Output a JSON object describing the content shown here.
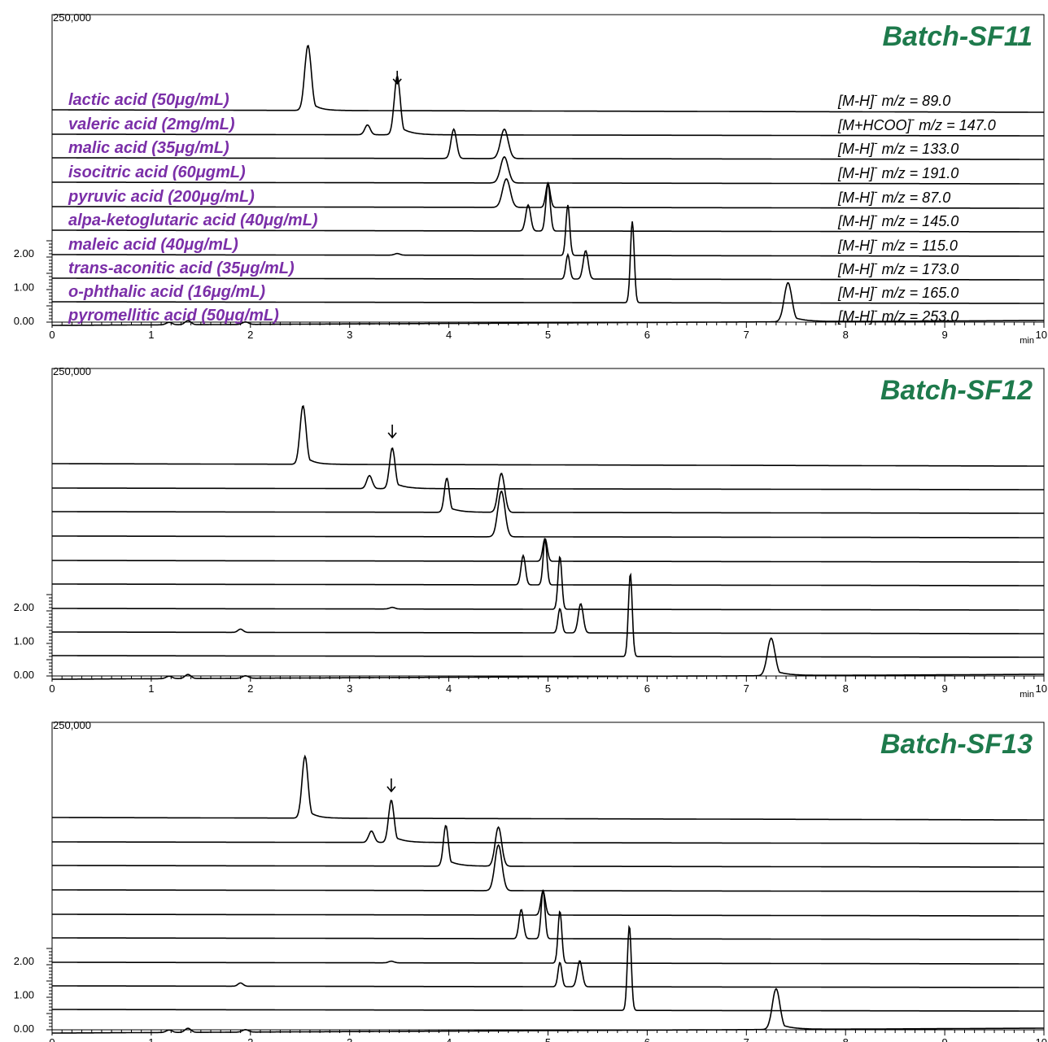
{
  "chart_data": {
    "type": "line",
    "x_unit": "min",
    "xlim": [
      0,
      10
    ],
    "x_ticks": [
      "0",
      "1",
      "2",
      "3",
      "4",
      "5",
      "6",
      "7",
      "8",
      "9",
      "10"
    ],
    "y_top_label": "250,000",
    "y_ticks": [
      "0.00",
      "1.00",
      "2.00"
    ],
    "compounds": [
      "lactic acid (50μg/mL)",
      "valeric acid (2mg/mL)",
      "malic acid (35μg/mL)",
      "isocitric acid (60μgmL)",
      "pyruvic acid (200μg/mL)",
      "alpa-ketoglutaric acid (40μg/mL)",
      "maleic acid (40μg/mL)",
      "trans-aconitic acid (35μg/mL)",
      "o-phthalic acid (16μg/mL)",
      "pyromellitic acid (50μg/mL)"
    ],
    "ions": [
      {
        "ion": "[M-H]",
        "mz": "m/z = 89.0"
      },
      {
        "ion": "[M+HCOO]",
        "mz": "m/z = 147.0"
      },
      {
        "ion": "[M-H]",
        "mz": "m/z = 133.0"
      },
      {
        "ion": "[M-H]",
        "mz": "m/z = 191.0"
      },
      {
        "ion": "[M-H]",
        "mz": "m/z = 87.0"
      },
      {
        "ion": "[M-H]",
        "mz": "m/z = 145.0"
      },
      {
        "ion": "[M-H]",
        "mz": "m/z = 115.0"
      },
      {
        "ion": "[M-H]",
        "mz": "m/z = 173.0"
      },
      {
        "ion": "[M-H]",
        "mz": "m/z = 165.0"
      },
      {
        "ion": "[M-H]",
        "mz": "m/z = 253.0"
      }
    ],
    "ion_superscript": "-",
    "panels": [
      {
        "title": "Batch-SF11",
        "arrow_x": 3.48,
        "series": [
          {
            "peaks": [
              {
                "x": 2.58,
                "h": 80,
                "w": 0.06,
                "tail": 0.08
              }
            ]
          },
          {
            "peaks": [
              {
                "x": 3.18,
                "h": 12,
                "w": 0.05
              },
              {
                "x": 3.48,
                "h": 72,
                "w": 0.055,
                "tail": 0.1
              }
            ]
          },
          {
            "peaks": [
              {
                "x": 4.05,
                "h": 36,
                "w": 0.05
              },
              {
                "x": 4.56,
                "h": 36,
                "w": 0.07
              }
            ]
          },
          {
            "peaks": [
              {
                "x": 4.03,
                "h": 0,
                "w": 0.05
              },
              {
                "x": 4.56,
                "h": 32,
                "w": 0.07
              }
            ]
          },
          {
            "peaks": [
              {
                "x": 4.58,
                "h": 35,
                "w": 0.07
              },
              {
                "x": 5.0,
                "h": 30,
                "w": 0.04
              }
            ]
          },
          {
            "peaks": [
              {
                "x": 4.8,
                "h": 32,
                "w": 0.045
              },
              {
                "x": 5.0,
                "h": 58,
                "w": 0.04
              }
            ]
          },
          {
            "peaks": [
              {
                "x": 5.2,
                "h": 62,
                "w": 0.035
              },
              {
                "x": 3.48,
                "h": 2,
                "w": 0.05
              }
            ]
          },
          {
            "peaks": [
              {
                "x": 5.2,
                "h": 30,
                "w": 0.035
              },
              {
                "x": 5.38,
                "h": 35,
                "w": 0.045
              }
            ]
          },
          {
            "peaks": [
              {
                "x": 5.85,
                "h": 100,
                "w": 0.035
              }
            ]
          },
          {
            "peaks": [
              {
                "x": 7.42,
                "h": 48,
                "w": 0.07,
                "tail": 0.12
              }
            ]
          }
        ]
      },
      {
        "title": "Batch-SF12",
        "arrow_x": 3.43,
        "series": [
          {
            "peaks": [
              {
                "x": 2.53,
                "h": 72,
                "w": 0.055,
                "tail": 0.08
              }
            ]
          },
          {
            "peaks": [
              {
                "x": 3.2,
                "h": 16,
                "w": 0.05
              },
              {
                "x": 3.43,
                "h": 50,
                "w": 0.05,
                "tail": 0.1
              }
            ]
          },
          {
            "peaks": [
              {
                "x": 3.98,
                "h": 42,
                "w": 0.045,
                "tail": 0.1
              },
              {
                "x": 4.53,
                "h": 48,
                "w": 0.06
              }
            ]
          },
          {
            "peaks": [
              {
                "x": 4.53,
                "h": 56,
                "w": 0.065
              }
            ]
          },
          {
            "peaks": [
              {
                "x": 4.97,
                "h": 28,
                "w": 0.04
              }
            ]
          },
          {
            "peaks": [
              {
                "x": 4.75,
                "h": 36,
                "w": 0.04
              },
              {
                "x": 4.97,
                "h": 56,
                "w": 0.035
              }
            ]
          },
          {
            "peaks": [
              {
                "x": 5.12,
                "h": 65,
                "w": 0.035
              },
              {
                "x": 3.43,
                "h": 2,
                "w": 0.05
              }
            ]
          },
          {
            "peaks": [
              {
                "x": 5.12,
                "h": 30,
                "w": 0.035
              },
              {
                "x": 5.33,
                "h": 36,
                "w": 0.045
              }
            ]
          },
          {
            "peaks": [
              {
                "x": 5.83,
                "h": 102,
                "w": 0.035
              }
            ]
          },
          {
            "peaks": [
              {
                "x": 7.25,
                "h": 46,
                "w": 0.07,
                "tail": 0.12
              }
            ]
          }
        ]
      },
      {
        "title": "Batch-SF13",
        "arrow_x": 3.42,
        "series": [
          {
            "peaks": [
              {
                "x": 2.55,
                "h": 76,
                "w": 0.055,
                "tail": 0.08
              }
            ]
          },
          {
            "peaks": [
              {
                "x": 3.22,
                "h": 14,
                "w": 0.05
              },
              {
                "x": 3.42,
                "h": 52,
                "w": 0.05,
                "tail": 0.1
              }
            ]
          },
          {
            "peaks": [
              {
                "x": 3.97,
                "h": 50,
                "w": 0.045,
                "tail": 0.1
              },
              {
                "x": 4.5,
                "h": 48,
                "w": 0.06
              }
            ]
          },
          {
            "peaks": [
              {
                "x": 4.5,
                "h": 56,
                "w": 0.065
              }
            ]
          },
          {
            "peaks": [
              {
                "x": 4.95,
                "h": 30,
                "w": 0.04
              }
            ]
          },
          {
            "peaks": [
              {
                "x": 4.73,
                "h": 36,
                "w": 0.04
              },
              {
                "x": 4.95,
                "h": 60,
                "w": 0.035
              }
            ]
          },
          {
            "peaks": [
              {
                "x": 5.12,
                "h": 64,
                "w": 0.035
              },
              {
                "x": 3.42,
                "h": 2,
                "w": 0.05
              }
            ]
          },
          {
            "peaks": [
              {
                "x": 5.12,
                "h": 30,
                "w": 0.035
              },
              {
                "x": 5.32,
                "h": 32,
                "w": 0.045
              }
            ]
          },
          {
            "peaks": [
              {
                "x": 5.82,
                "h": 104,
                "w": 0.035
              }
            ]
          },
          {
            "peaks": [
              {
                "x": 7.3,
                "h": 50,
                "w": 0.07,
                "tail": 0.12
              }
            ]
          }
        ]
      }
    ]
  }
}
